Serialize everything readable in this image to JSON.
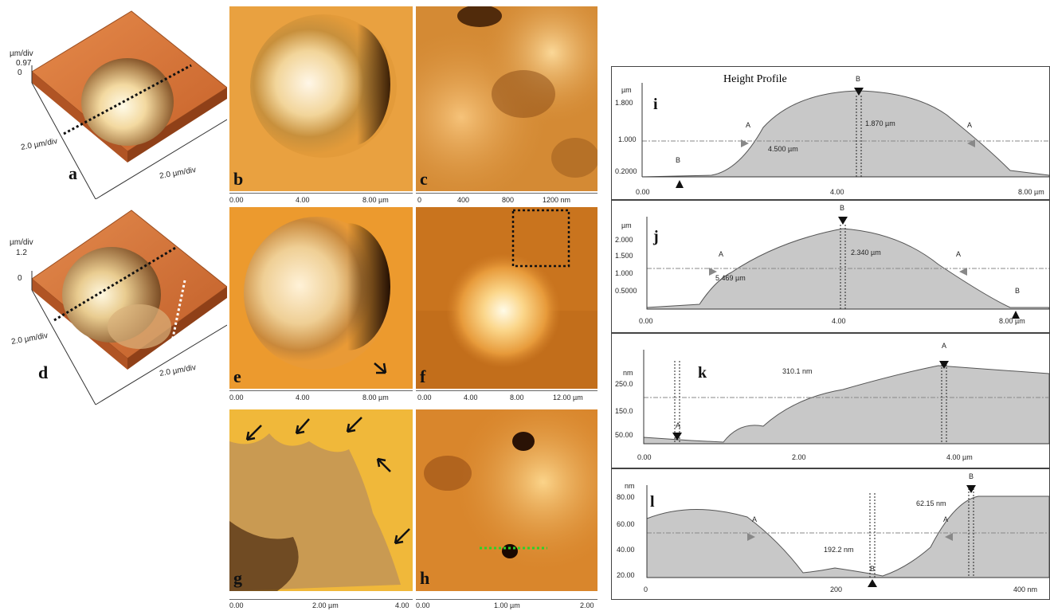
{
  "panels_3d": [
    {
      "label": "a",
      "z_unit": "µm/div",
      "z_max": "0.97",
      "z_zero": "0",
      "x_scale": "2.0 µm/div",
      "y_scale": "2.0 µm/div"
    },
    {
      "label": "d",
      "z_unit": "µm/div",
      "z_max": "1.2",
      "z_zero": "0",
      "x_scale": "2.0 µm/div",
      "y_scale": "2.0 µm/div"
    }
  ],
  "images": [
    {
      "label": "b"
    },
    {
      "label": "c"
    },
    {
      "label": "e"
    },
    {
      "label": "f"
    },
    {
      "label": "g"
    },
    {
      "label": "h"
    }
  ],
  "axes": {
    "row1_left": [
      "0.00",
      "4.00",
      "8.00 µm"
    ],
    "row1_right": [
      "0",
      "400",
      "800",
      "1200 nm"
    ],
    "row2_left": [
      "0.00",
      "4.00",
      "8.00 µm"
    ],
    "row2_right": [
      "0.00",
      "4.00",
      "8.00",
      "12.00 µm"
    ],
    "row3_left": [
      "0.00",
      "2.00 µm",
      "4.00"
    ],
    "row3_right": [
      "0.00",
      "1.00 µm",
      "2.00"
    ]
  },
  "profiles": [
    {
      "label": "i",
      "title": "Height Profile",
      "unit": "µm",
      "yticks": [
        "1.800",
        "1.000",
        "0.2000"
      ],
      "xticks": [
        "0.00",
        "4.00",
        "8.00 µm"
      ],
      "ann": [
        "4.500 µm",
        "1.870 µm"
      ],
      "markers": [
        "A",
        "B",
        "A",
        "B"
      ]
    },
    {
      "label": "j",
      "unit": "µm",
      "yticks": [
        "2.000",
        "1.500",
        "1.000",
        "0.5000"
      ],
      "xticks": [
        "0.00",
        "4.00",
        "8.00 µm"
      ],
      "ann": [
        "5.469 µm",
        "2.340 µm"
      ],
      "markers": [
        "A",
        "B",
        "A",
        "B"
      ]
    },
    {
      "label": "k",
      "unit": "nm",
      "yticks": [
        "250.0",
        "150.0",
        "50.00"
      ],
      "xticks": [
        "0.00",
        "2.00",
        "4.00 µm"
      ],
      "ann": [
        "310.1 nm"
      ],
      "markers": [
        "A",
        "A"
      ]
    },
    {
      "label": "l",
      "unit": "nm",
      "yticks": [
        "80.00",
        "60.00",
        "40.00",
        "20.00"
      ],
      "xticks": [
        "0",
        "200",
        "400 nm"
      ],
      "ann": [
        "192.2 nm",
        "62.15 nm"
      ],
      "markers": [
        "A",
        "B",
        "A",
        "B"
      ]
    }
  ]
}
